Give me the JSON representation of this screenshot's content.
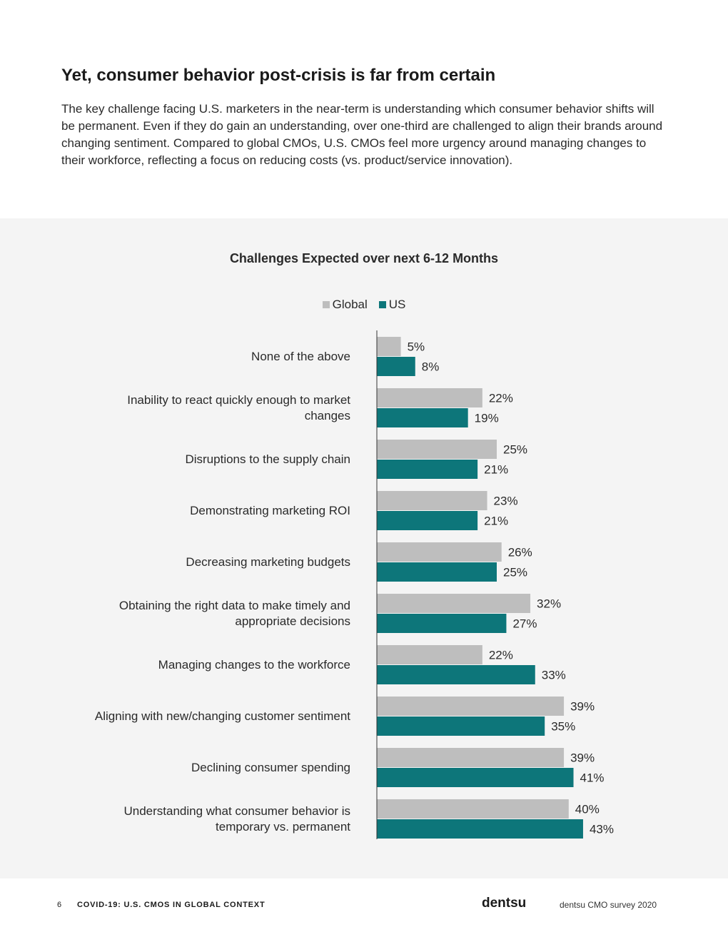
{
  "heading": "Yet, consumer behavior post-crisis is far from certain",
  "intro": "The key challenge facing U.S. marketers in the near-term is understanding which consumer behavior shifts will be permanent. Even if they do gain an understanding, over one-third are challenged to align their brands around changing sentiment. Compared to global CMOs, U.S. CMOs feel more urgency around managing changes to their workforce, reflecting a focus on reducing costs (vs. product/service innovation).",
  "colors": {
    "global": "#bebebe",
    "us": "#0d767a",
    "panel": "#f4f4f4"
  },
  "chart_data": {
    "type": "bar",
    "orientation": "horizontal",
    "title": "Challenges Expected over next 6-12 Months",
    "value_suffix": "%",
    "xlim": [
      0,
      45
    ],
    "legend_position": "top-center",
    "categories": [
      [
        "None of the above"
      ],
      [
        "Inability to react quickly enough to market",
        "changes"
      ],
      [
        "Disruptions to the supply chain"
      ],
      [
        "Demonstrating marketing ROI"
      ],
      [
        "Decreasing marketing budgets"
      ],
      [
        "Obtaining the right data to make timely and",
        "appropriate decisions"
      ],
      [
        "Managing changes to the workforce"
      ],
      [
        "Aligning with new/changing customer sentiment"
      ],
      [
        "Declining consumer spending"
      ],
      [
        "Understanding what consumer behavior is",
        "temporary vs. permanent"
      ]
    ],
    "series": [
      {
        "name": "Global",
        "values": [
          5,
          22,
          25,
          23,
          26,
          32,
          22,
          39,
          39,
          40
        ]
      },
      {
        "name": "US",
        "values": [
          8,
          19,
          21,
          21,
          25,
          27,
          33,
          35,
          41,
          43
        ]
      }
    ]
  },
  "footer": {
    "page_number": "6",
    "doc_title": "COVID-19: U.S. CMOS IN GLOBAL CONTEXT",
    "brand": "dentsu",
    "source": "dentsu CMO survey 2020"
  }
}
